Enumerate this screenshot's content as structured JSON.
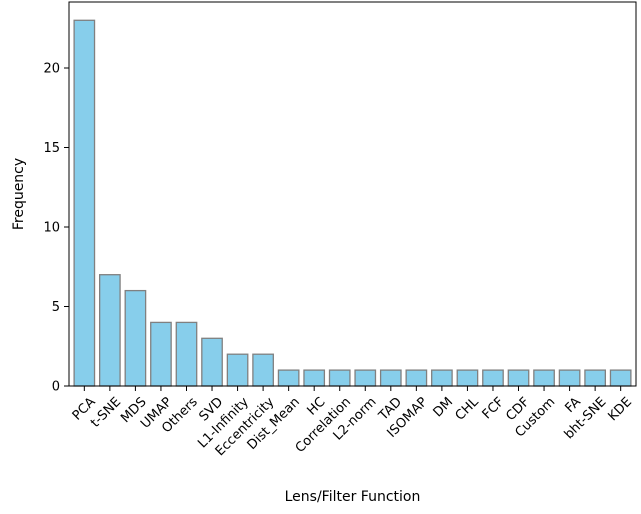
{
  "chart_data": {
    "type": "bar",
    "title": "",
    "xlabel": "Lens/Filter Function",
    "ylabel": "Frequency",
    "categories": [
      "PCA",
      "t-SNE",
      "MDS",
      "UMAP",
      "Others",
      "SVD",
      "L1-Infinity",
      "Eccentricity",
      "Dist_Mean",
      "HC",
      "Correlation",
      "L2-norm",
      "TAD",
      "ISOMAP",
      "DM",
      "CHL",
      "FCF",
      "CDF",
      "Custom",
      "FA",
      "bht-SNE",
      "KDE"
    ],
    "values": [
      23,
      7,
      6,
      4,
      4,
      3,
      2,
      2,
      1,
      1,
      1,
      1,
      1,
      1,
      1,
      1,
      1,
      1,
      1,
      1,
      1,
      1
    ],
    "ylim": [
      0,
      24.15
    ],
    "yticks": [
      0,
      5,
      10,
      15,
      20
    ],
    "grid": false,
    "bar_color": "#87ceeb",
    "bar_edge_color": "#808080"
  }
}
